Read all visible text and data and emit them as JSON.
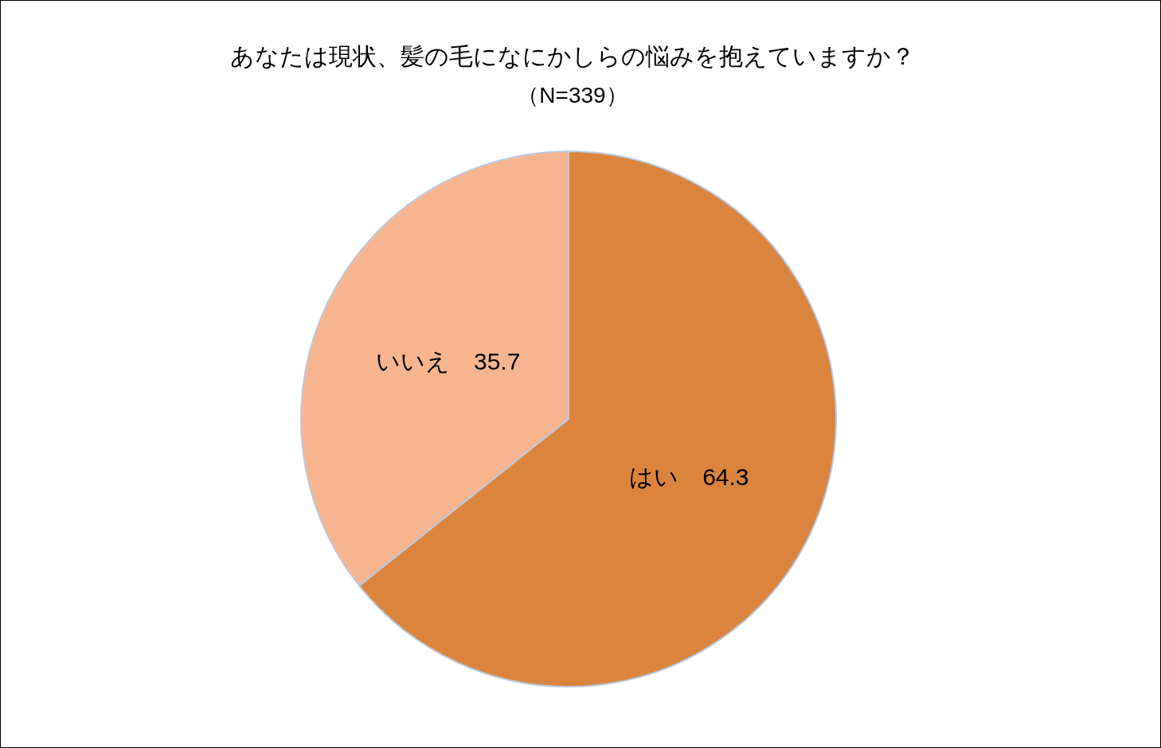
{
  "chart_data": {
    "type": "pie",
    "title": "あなたは現状、髪の毛になにかしらの悩みを抱えていますか？",
    "subtitle": "（N=339）",
    "categories": [
      "はい",
      "いいえ"
    ],
    "values": [
      64.3,
      35.7
    ],
    "colors": [
      "#db843d",
      "#f7b58f"
    ],
    "data_labels": true
  }
}
